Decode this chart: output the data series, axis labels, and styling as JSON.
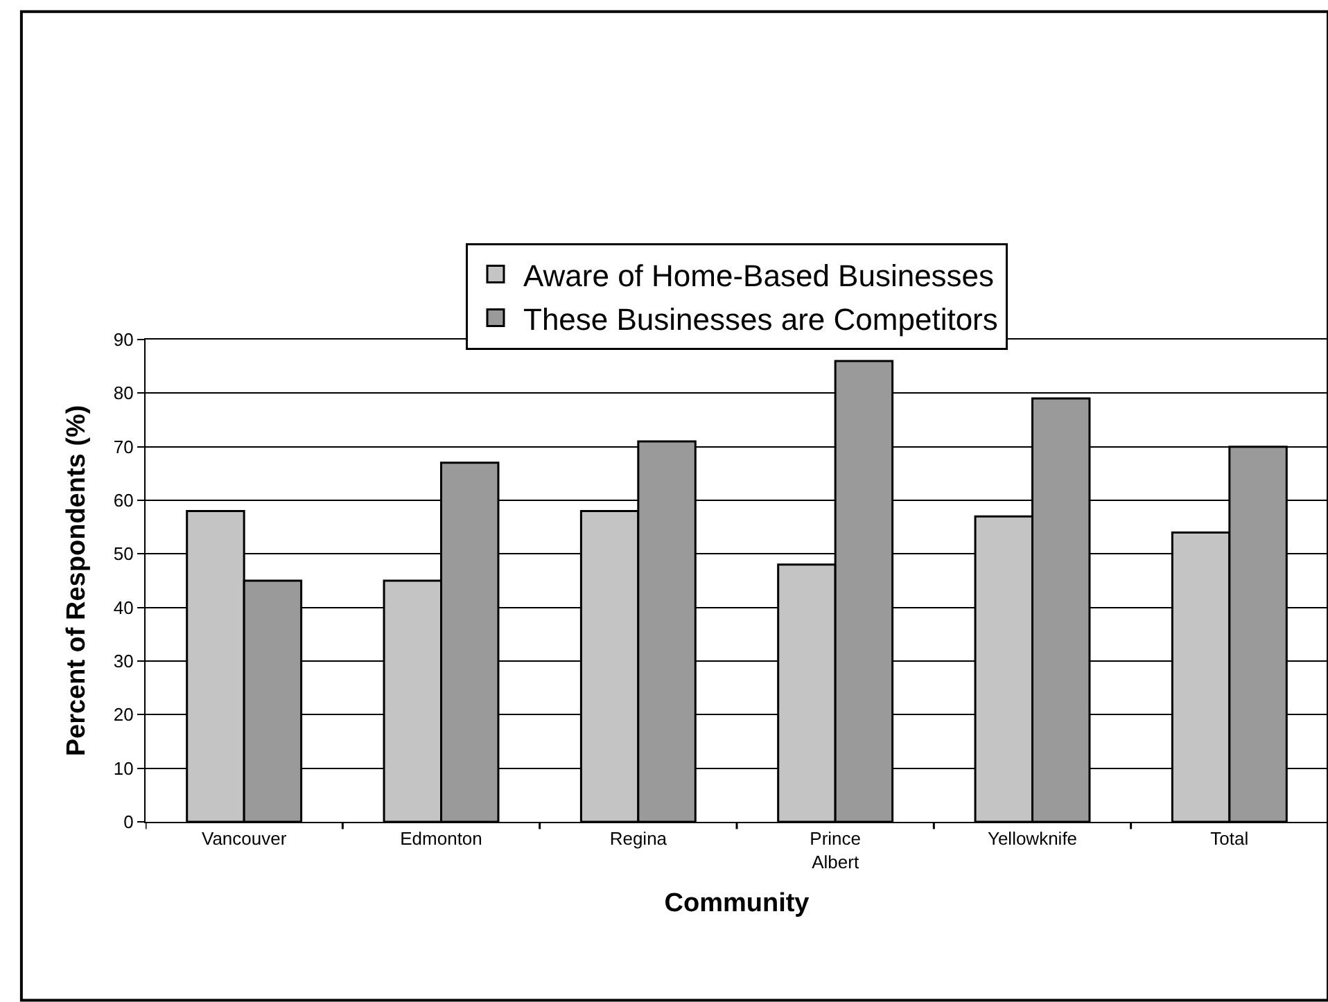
{
  "chart_data": {
    "type": "bar",
    "xlabel": "Community",
    "ylabel": "Percent of Respondents (%)",
    "categories": [
      "Vancouver",
      "Edmonton",
      "Regina",
      "Prince Albert",
      "Yellowknife",
      "Total"
    ],
    "series": [
      {
        "name": "Aware of Home-Based Businesses",
        "color": "#c4c4c4",
        "values": [
          58,
          45,
          58,
          48,
          57,
          54
        ]
      },
      {
        "name": "These Businesses are Competitors",
        "color": "#9a9a9a",
        "values": [
          45,
          67,
          71,
          86,
          79,
          70
        ]
      }
    ],
    "ylim": [
      0,
      90
    ],
    "yticks": [
      0,
      10,
      20,
      30,
      40,
      50,
      60,
      70,
      80,
      90
    ],
    "grid": "y",
    "legend": "top"
  }
}
